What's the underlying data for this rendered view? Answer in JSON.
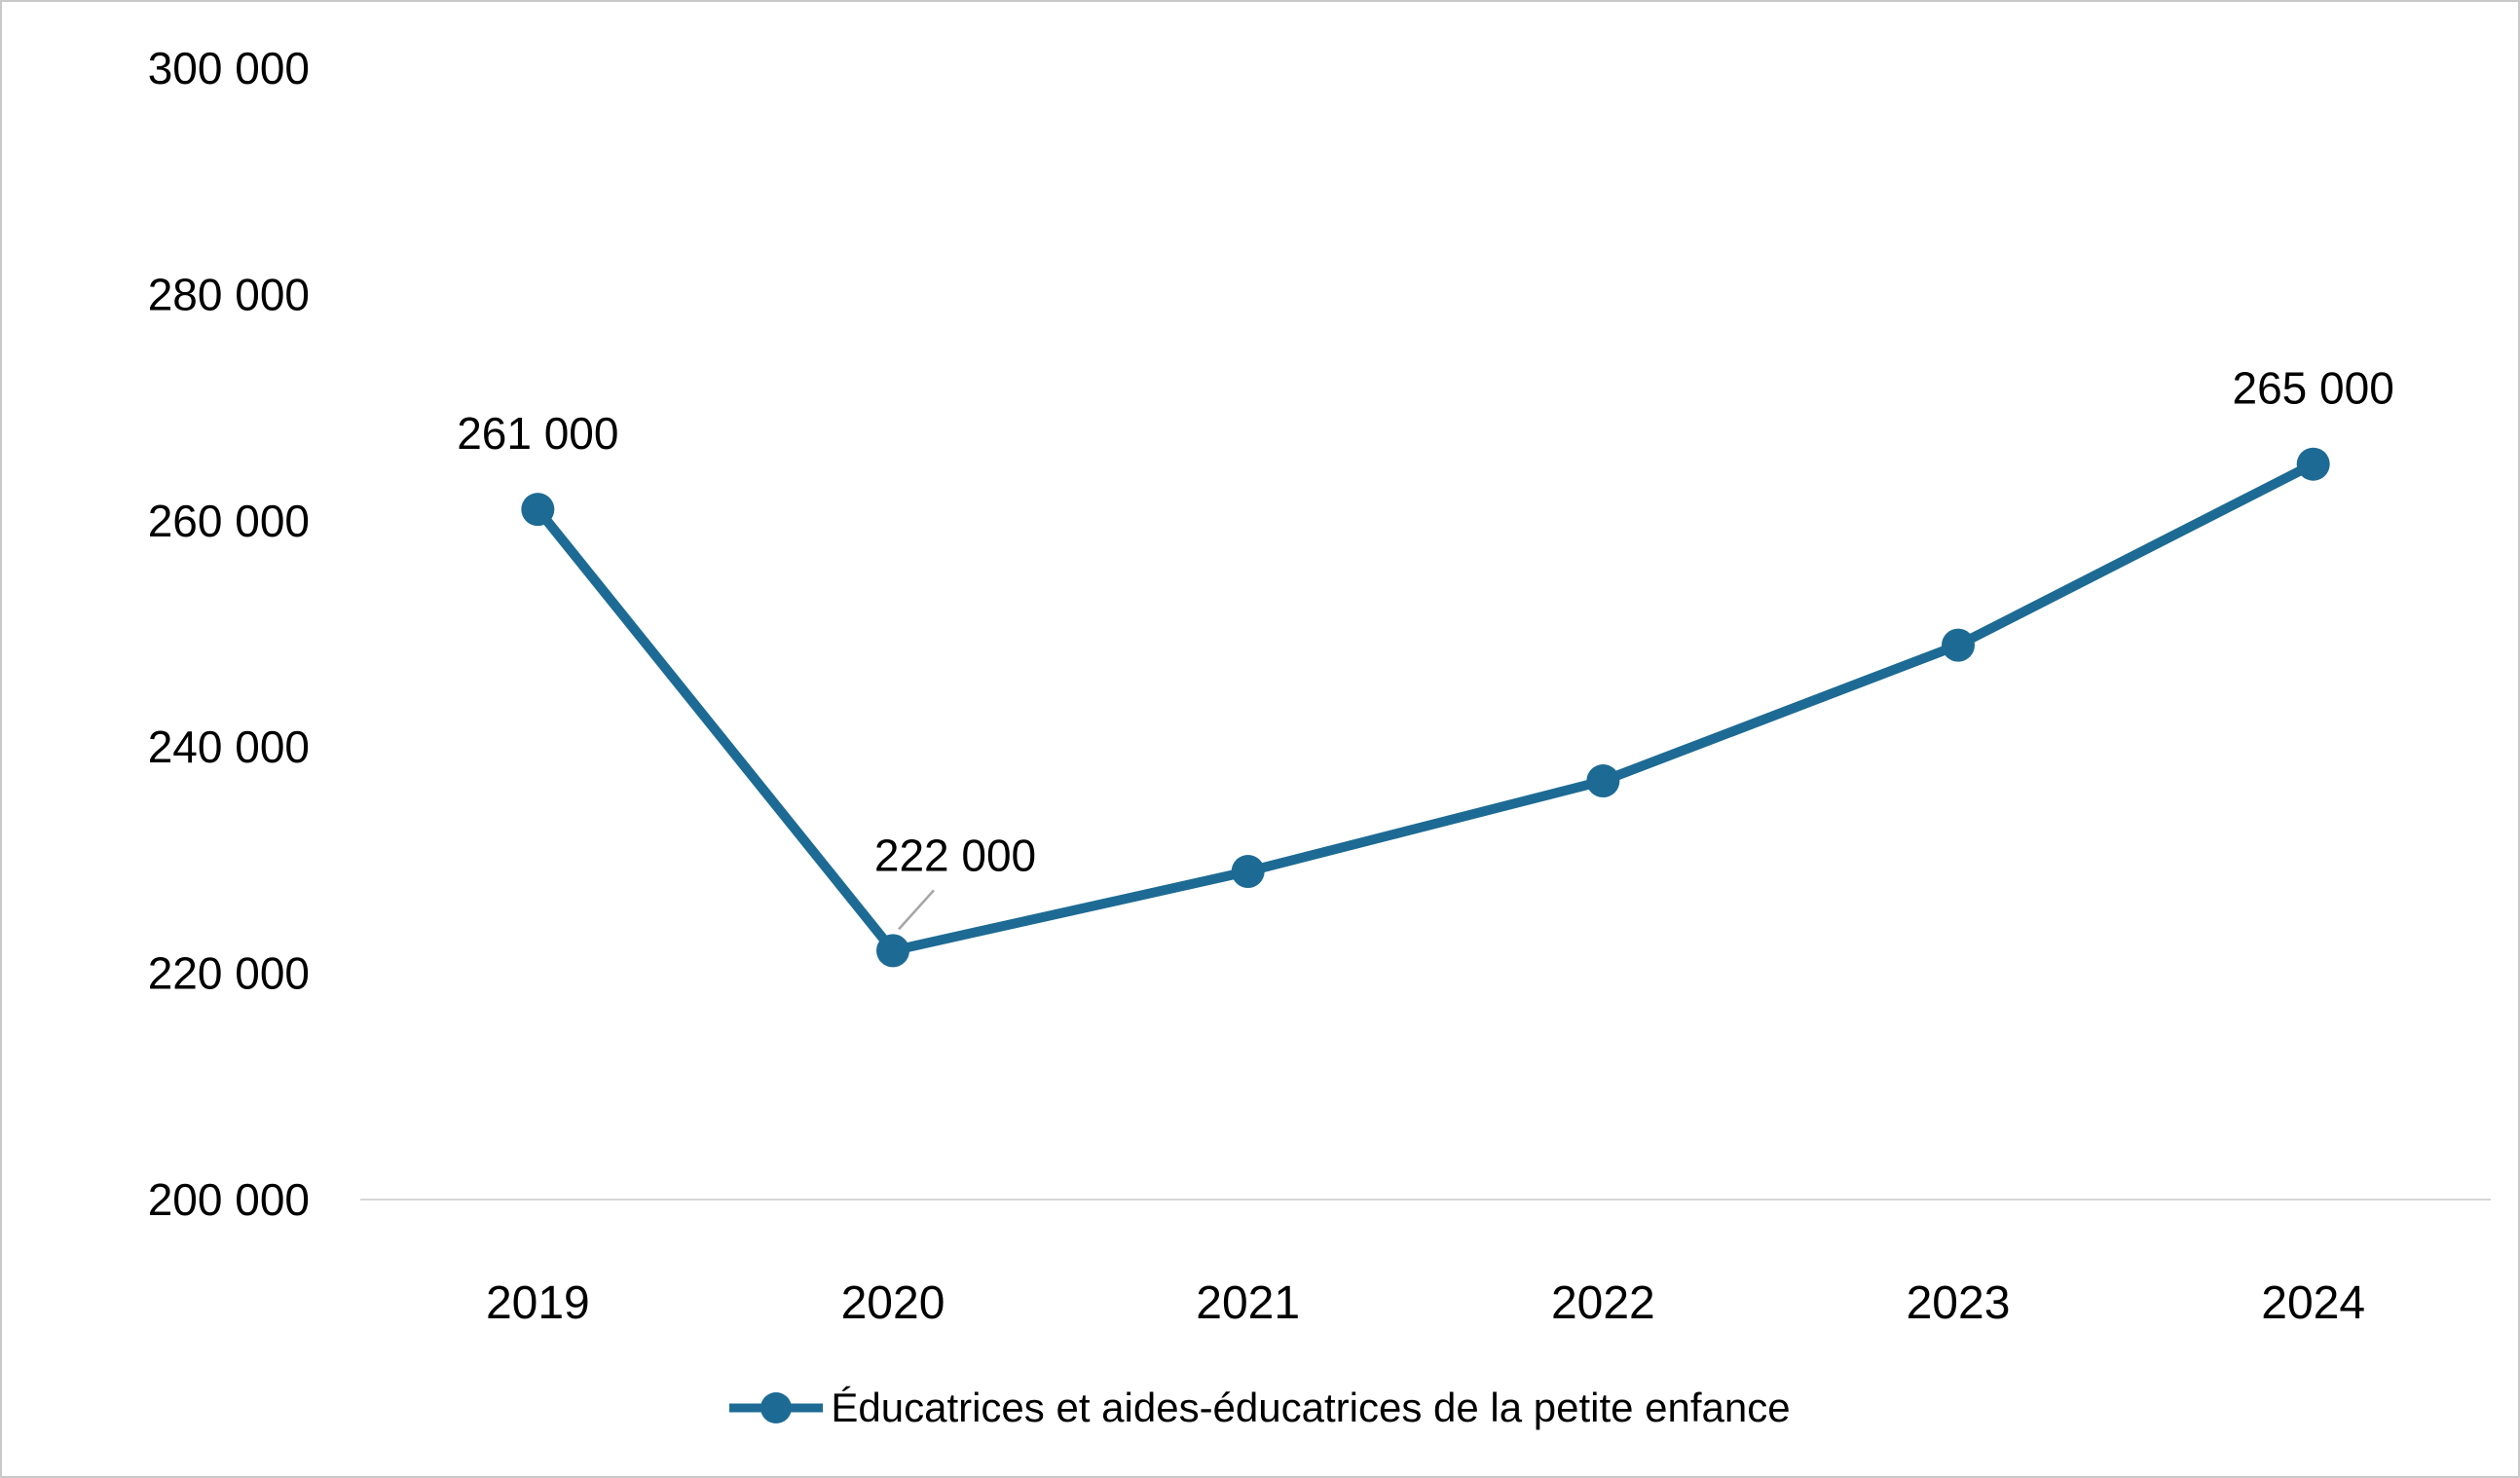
{
  "chart_data": {
    "type": "line",
    "title": "",
    "xlabel": "",
    "ylabel": "",
    "grid": false,
    "legend_position": "bottom",
    "categories": [
      "2019",
      "2020",
      "2021",
      "2022",
      "2023",
      "2024"
    ],
    "series": [
      {
        "name": "Éducatrices et aides-éducatrices de la petite enfance",
        "values": [
          261000,
          222000,
          229000,
          237000,
          249000,
          265000
        ],
        "color": "#1d6b94"
      }
    ],
    "ylim": [
      200000,
      300000
    ],
    "ytick_interval": 20000,
    "ytick_labels": [
      "200 000",
      "220 000",
      "240 000",
      "260 000",
      "280 000",
      "300 000"
    ],
    "data_labels": [
      {
        "index": 0,
        "text": "261 000",
        "leader": false
      },
      {
        "index": 1,
        "text": "222 000",
        "leader": true
      },
      {
        "index": 5,
        "text": "265 000",
        "leader": false
      }
    ]
  }
}
